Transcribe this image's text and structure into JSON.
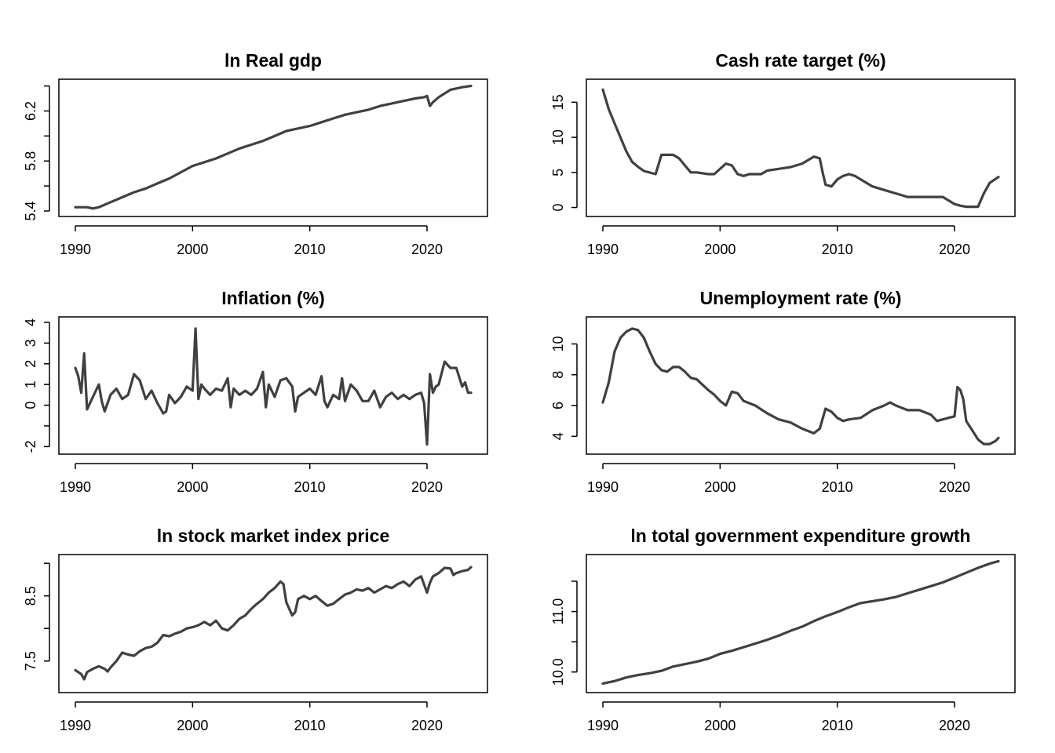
{
  "colors": {
    "line": "#404040",
    "axis": "#000000",
    "background": "#ffffff"
  },
  "chart_data": [
    {
      "type": "line",
      "title": "ln Real gdp",
      "xlabel": "",
      "ylabel": "",
      "xlim": [
        1990,
        2023.75
      ],
      "ylim": [
        5.4,
        6.41
      ],
      "xticks": [
        1990,
        2000,
        2010,
        2020
      ],
      "yticks": [
        5.4,
        5.6,
        5.8,
        6.0,
        6.2,
        6.4
      ],
      "ytick_labels": [
        "5.4",
        "",
        "5.8",
        "",
        "6.2",
        ""
      ],
      "grid": false,
      "series": [
        {
          "x": [
            1990,
            1991,
            1991.5,
            1992,
            1993,
            1994,
            1995,
            1996,
            1997,
            1998,
            1999,
            2000,
            2001,
            2002,
            2003,
            2004,
            2005,
            2006,
            2007,
            2008,
            2009,
            2010,
            2011,
            2012,
            2013,
            2014,
            2015,
            2016,
            2017,
            2018,
            2019,
            2019.75,
            2020,
            2020.25,
            2020.5,
            2021,
            2021.5,
            2022,
            2023,
            2023.75
          ],
          "y": [
            5.43,
            5.43,
            5.42,
            5.43,
            5.47,
            5.51,
            5.55,
            5.58,
            5.62,
            5.66,
            5.71,
            5.76,
            5.79,
            5.82,
            5.86,
            5.9,
            5.93,
            5.96,
            6.0,
            6.04,
            6.06,
            6.08,
            6.11,
            6.14,
            6.17,
            6.19,
            6.21,
            6.24,
            6.26,
            6.28,
            6.3,
            6.31,
            6.32,
            6.24,
            6.27,
            6.31,
            6.34,
            6.37,
            6.39,
            6.4
          ]
        }
      ]
    },
    {
      "type": "line",
      "title": "Cash rate target (%)",
      "xlabel": "",
      "ylabel": "",
      "xlim": [
        1990,
        2023.75
      ],
      "ylim": [
        -0.5,
        17.5
      ],
      "xticks": [
        1990,
        2000,
        2010,
        2020
      ],
      "yticks": [
        0,
        5,
        10,
        15
      ],
      "ytick_labels": [
        "0",
        "5",
        "10",
        "15"
      ],
      "grid": false,
      "series": [
        {
          "x": [
            1990,
            1990.5,
            1991,
            1991.5,
            1992,
            1992.5,
            1993,
            1993.5,
            1994.5,
            1995,
            1996,
            1996.5,
            1997,
            1997.5,
            1998,
            1999,
            1999.5,
            2000,
            2000.5,
            2001,
            2001.5,
            2002,
            2002.5,
            2003,
            2003.5,
            2004,
            2005,
            2006,
            2007,
            2007.5,
            2008,
            2008.5,
            2008.75,
            2009,
            2009.5,
            2010,
            2010.5,
            2011,
            2011.5,
            2012,
            2012.5,
            2013,
            2014,
            2015,
            2016,
            2017,
            2018,
            2019,
            2019.5,
            2020,
            2020.5,
            2021,
            2022,
            2022.5,
            2023,
            2023.75
          ],
          "y": [
            16.8,
            14.0,
            12.0,
            10.0,
            8.0,
            6.5,
            5.8,
            5.2,
            4.75,
            7.5,
            7.5,
            7.0,
            6.0,
            5.0,
            5.0,
            4.75,
            4.75,
            5.5,
            6.25,
            6.0,
            4.75,
            4.5,
            4.75,
            4.75,
            4.75,
            5.25,
            5.5,
            5.75,
            6.25,
            6.75,
            7.25,
            7.0,
            5.0,
            3.25,
            3.0,
            4.0,
            4.5,
            4.75,
            4.5,
            4.0,
            3.5,
            3.0,
            2.5,
            2.0,
            1.5,
            1.5,
            1.5,
            1.5,
            1.0,
            0.5,
            0.25,
            0.1,
            0.1,
            2.0,
            3.5,
            4.35
          ]
        }
      ]
    },
    {
      "type": "line",
      "title": "Inflation (%)",
      "xlabel": "",
      "ylabel": "",
      "xlim": [
        1990,
        2023.75
      ],
      "ylim": [
        -2.1,
        4.0
      ],
      "xticks": [
        1990,
        2000,
        2010,
        2020
      ],
      "yticks": [
        -2,
        -1,
        0,
        1,
        2,
        3,
        4
      ],
      "ytick_labels": [
        "-2",
        "",
        "0",
        "1",
        "2",
        "3",
        "4"
      ],
      "grid": false,
      "series": [
        {
          "x": [
            1990,
            1990.25,
            1990.5,
            1990.75,
            1991,
            1991.5,
            1992,
            1992.25,
            1992.5,
            1993,
            1993.5,
            1994,
            1994.5,
            1995,
            1995.5,
            1996,
            1996.5,
            1997,
            1997.5,
            1997.75,
            1998,
            1998.5,
            1999,
            1999.5,
            2000,
            2000.25,
            2000.5,
            2000.75,
            2001,
            2001.5,
            2002,
            2002.5,
            2003,
            2003.25,
            2003.5,
            2004,
            2004.5,
            2005,
            2005.5,
            2006,
            2006.25,
            2006.5,
            2007,
            2007.5,
            2008,
            2008.5,
            2008.75,
            2009,
            2009.5,
            2010,
            2010.5,
            2011,
            2011.25,
            2011.5,
            2012,
            2012.5,
            2012.75,
            2013,
            2013.5,
            2014,
            2014.5,
            2015,
            2015.5,
            2016,
            2016.5,
            2017,
            2017.5,
            2018,
            2018.5,
            2019,
            2019.5,
            2019.75,
            2020,
            2020.25,
            2020.5,
            2020.75,
            2021,
            2021.5,
            2022,
            2022.5,
            2023,
            2023.25,
            2023.5,
            2023.75
          ],
          "y": [
            1.8,
            1.4,
            0.6,
            2.5,
            -0.2,
            0.4,
            1.0,
            0.2,
            -0.3,
            0.5,
            0.8,
            0.3,
            0.5,
            1.5,
            1.2,
            0.3,
            0.7,
            0.1,
            -0.4,
            -0.3,
            0.5,
            0.1,
            0.4,
            0.9,
            0.7,
            3.7,
            0.3,
            1.0,
            0.8,
            0.5,
            0.8,
            0.7,
            1.3,
            -0.1,
            0.8,
            0.5,
            0.7,
            0.5,
            0.8,
            1.6,
            -0.1,
            1.0,
            0.4,
            1.2,
            1.3,
            0.9,
            -0.3,
            0.4,
            0.6,
            0.8,
            0.5,
            1.4,
            0.2,
            -0.1,
            0.5,
            0.3,
            1.3,
            0.2,
            1.0,
            0.7,
            0.2,
            0.2,
            0.7,
            -0.1,
            0.4,
            0.6,
            0.3,
            0.5,
            0.3,
            0.5,
            0.6,
            0.1,
            -1.9,
            1.5,
            0.6,
            0.9,
            1.0,
            2.1,
            1.8,
            1.8,
            0.9,
            1.1,
            0.6,
            0.6
          ]
        }
      ]
    },
    {
      "type": "line",
      "title": "Unemployment rate (%)",
      "xlabel": "",
      "ylabel": "",
      "xlim": [
        1990,
        2023.75
      ],
      "ylim": [
        3.2,
        11.4
      ],
      "xticks": [
        1990,
        2000,
        2010,
        2020
      ],
      "yticks": [
        4,
        6,
        8,
        10
      ],
      "ytick_labels": [
        "4",
        "6",
        "8",
        "10"
      ],
      "grid": false,
      "series": [
        {
          "x": [
            1990,
            1990.5,
            1991,
            1991.5,
            1992,
            1992.5,
            1993,
            1993.5,
            1994,
            1994.5,
            1995,
            1995.5,
            1996,
            1996.5,
            1997,
            1997.5,
            1998,
            1999,
            1999.5,
            2000,
            2000.5,
            2001,
            2001.5,
            2002,
            2003,
            2004,
            2005,
            2006,
            2007,
            2008,
            2008.5,
            2009,
            2009.5,
            2010,
            2010.5,
            2011,
            2012,
            2013,
            2014,
            2014.5,
            2015,
            2016,
            2017,
            2018,
            2018.5,
            2019,
            2019.5,
            2020,
            2020.25,
            2020.5,
            2020.75,
            2021,
            2021.5,
            2022,
            2022.5,
            2023,
            2023.5,
            2023.75
          ],
          "y": [
            6.2,
            7.5,
            9.5,
            10.4,
            10.8,
            11.0,
            10.9,
            10.4,
            9.5,
            8.7,
            8.3,
            8.2,
            8.5,
            8.5,
            8.2,
            7.8,
            7.7,
            7.0,
            6.7,
            6.3,
            6.0,
            6.9,
            6.8,
            6.3,
            6.0,
            5.5,
            5.1,
            4.9,
            4.5,
            4.2,
            4.5,
            5.8,
            5.6,
            5.2,
            5.0,
            5.1,
            5.2,
            5.7,
            6.0,
            6.2,
            6.0,
            5.7,
            5.7,
            5.4,
            5.0,
            5.1,
            5.2,
            5.3,
            7.2,
            7.0,
            6.4,
            5.0,
            4.4,
            3.8,
            3.5,
            3.5,
            3.7,
            3.9
          ]
        }
      ]
    },
    {
      "type": "line",
      "title": "ln stock market index price",
      "xlabel": "",
      "ylabel": "",
      "xlim": [
        1990,
        2023.75
      ],
      "ylim": [
        7.1,
        9.05
      ],
      "xticks": [
        1990,
        2000,
        2010,
        2020
      ],
      "yticks": [
        7.5,
        8.0,
        8.5,
        9.0
      ],
      "ytick_labels": [
        "7.5",
        "",
        "8.5",
        ""
      ],
      "grid": false,
      "series": [
        {
          "x": [
            1990,
            1990.5,
            1990.75,
            1991,
            1991.5,
            1992,
            1992.5,
            1992.75,
            1993,
            1993.5,
            1994,
            1994.5,
            1995,
            1995.5,
            1996,
            1996.5,
            1997,
            1997.5,
            1998,
            1998.5,
            1999,
            1999.5,
            2000,
            2000.5,
            2001,
            2001.5,
            2002,
            2002.5,
            2003,
            2003.5,
            2004,
            2004.5,
            2005,
            2005.5,
            2006,
            2006.5,
            2007,
            2007.5,
            2007.75,
            2008,
            2008.5,
            2008.75,
            2009,
            2009.5,
            2010,
            2010.5,
            2011,
            2011.5,
            2012,
            2012.5,
            2013,
            2013.5,
            2014,
            2014.5,
            2015,
            2015.5,
            2016,
            2016.5,
            2017,
            2017.5,
            2018,
            2018.5,
            2019,
            2019.5,
            2020,
            2020.25,
            2020.5,
            2021,
            2021.5,
            2022,
            2022.25,
            2022.5,
            2023,
            2023.5,
            2023.75
          ],
          "y": [
            7.36,
            7.3,
            7.22,
            7.33,
            7.38,
            7.42,
            7.38,
            7.34,
            7.4,
            7.5,
            7.63,
            7.6,
            7.58,
            7.65,
            7.7,
            7.72,
            7.78,
            7.9,
            7.88,
            7.92,
            7.95,
            8.0,
            8.02,
            8.05,
            8.1,
            8.05,
            8.12,
            8.0,
            7.97,
            8.05,
            8.15,
            8.2,
            8.3,
            8.38,
            8.45,
            8.55,
            8.62,
            8.72,
            8.68,
            8.4,
            8.2,
            8.25,
            8.45,
            8.5,
            8.45,
            8.5,
            8.42,
            8.35,
            8.38,
            8.45,
            8.52,
            8.55,
            8.6,
            8.58,
            8.62,
            8.55,
            8.6,
            8.65,
            8.62,
            8.68,
            8.72,
            8.65,
            8.75,
            8.8,
            8.55,
            8.7,
            8.8,
            8.85,
            8.93,
            8.92,
            8.82,
            8.85,
            8.88,
            8.9,
            8.94
          ]
        }
      ]
    },
    {
      "type": "line",
      "title": "ln total government expenditure growth",
      "xlabel": "",
      "ylabel": "",
      "xlim": [
        1990,
        2023.75
      ],
      "ylim": [
        9.75,
        11.85
      ],
      "xticks": [
        1990,
        2000,
        2010,
        2020
      ],
      "yticks": [
        10.0,
        10.5,
        11.0,
        11.5
      ],
      "ytick_labels": [
        "10.0",
        "",
        "11.0",
        ""
      ],
      "grid": false,
      "series": [
        {
          "x": [
            1990,
            1991,
            1992,
            1993,
            1994,
            1995,
            1996,
            1997,
            1998,
            1999,
            2000,
            2001,
            2002,
            2003,
            2004,
            2005,
            2006,
            2007,
            2008,
            2009,
            2010,
            2011,
            2012,
            2013,
            2014,
            2015,
            2016,
            2017,
            2018,
            2019,
            2020,
            2021,
            2022,
            2023,
            2023.75
          ],
          "y": [
            9.81,
            9.85,
            9.91,
            9.95,
            9.98,
            10.02,
            10.09,
            10.13,
            10.17,
            10.22,
            10.3,
            10.35,
            10.41,
            10.47,
            10.53,
            10.6,
            10.68,
            10.75,
            10.84,
            10.92,
            10.99,
            11.07,
            11.14,
            11.17,
            11.2,
            11.24,
            11.3,
            11.36,
            11.42,
            11.48,
            11.56,
            11.64,
            11.72,
            11.79,
            11.83
          ]
        }
      ]
    }
  ]
}
